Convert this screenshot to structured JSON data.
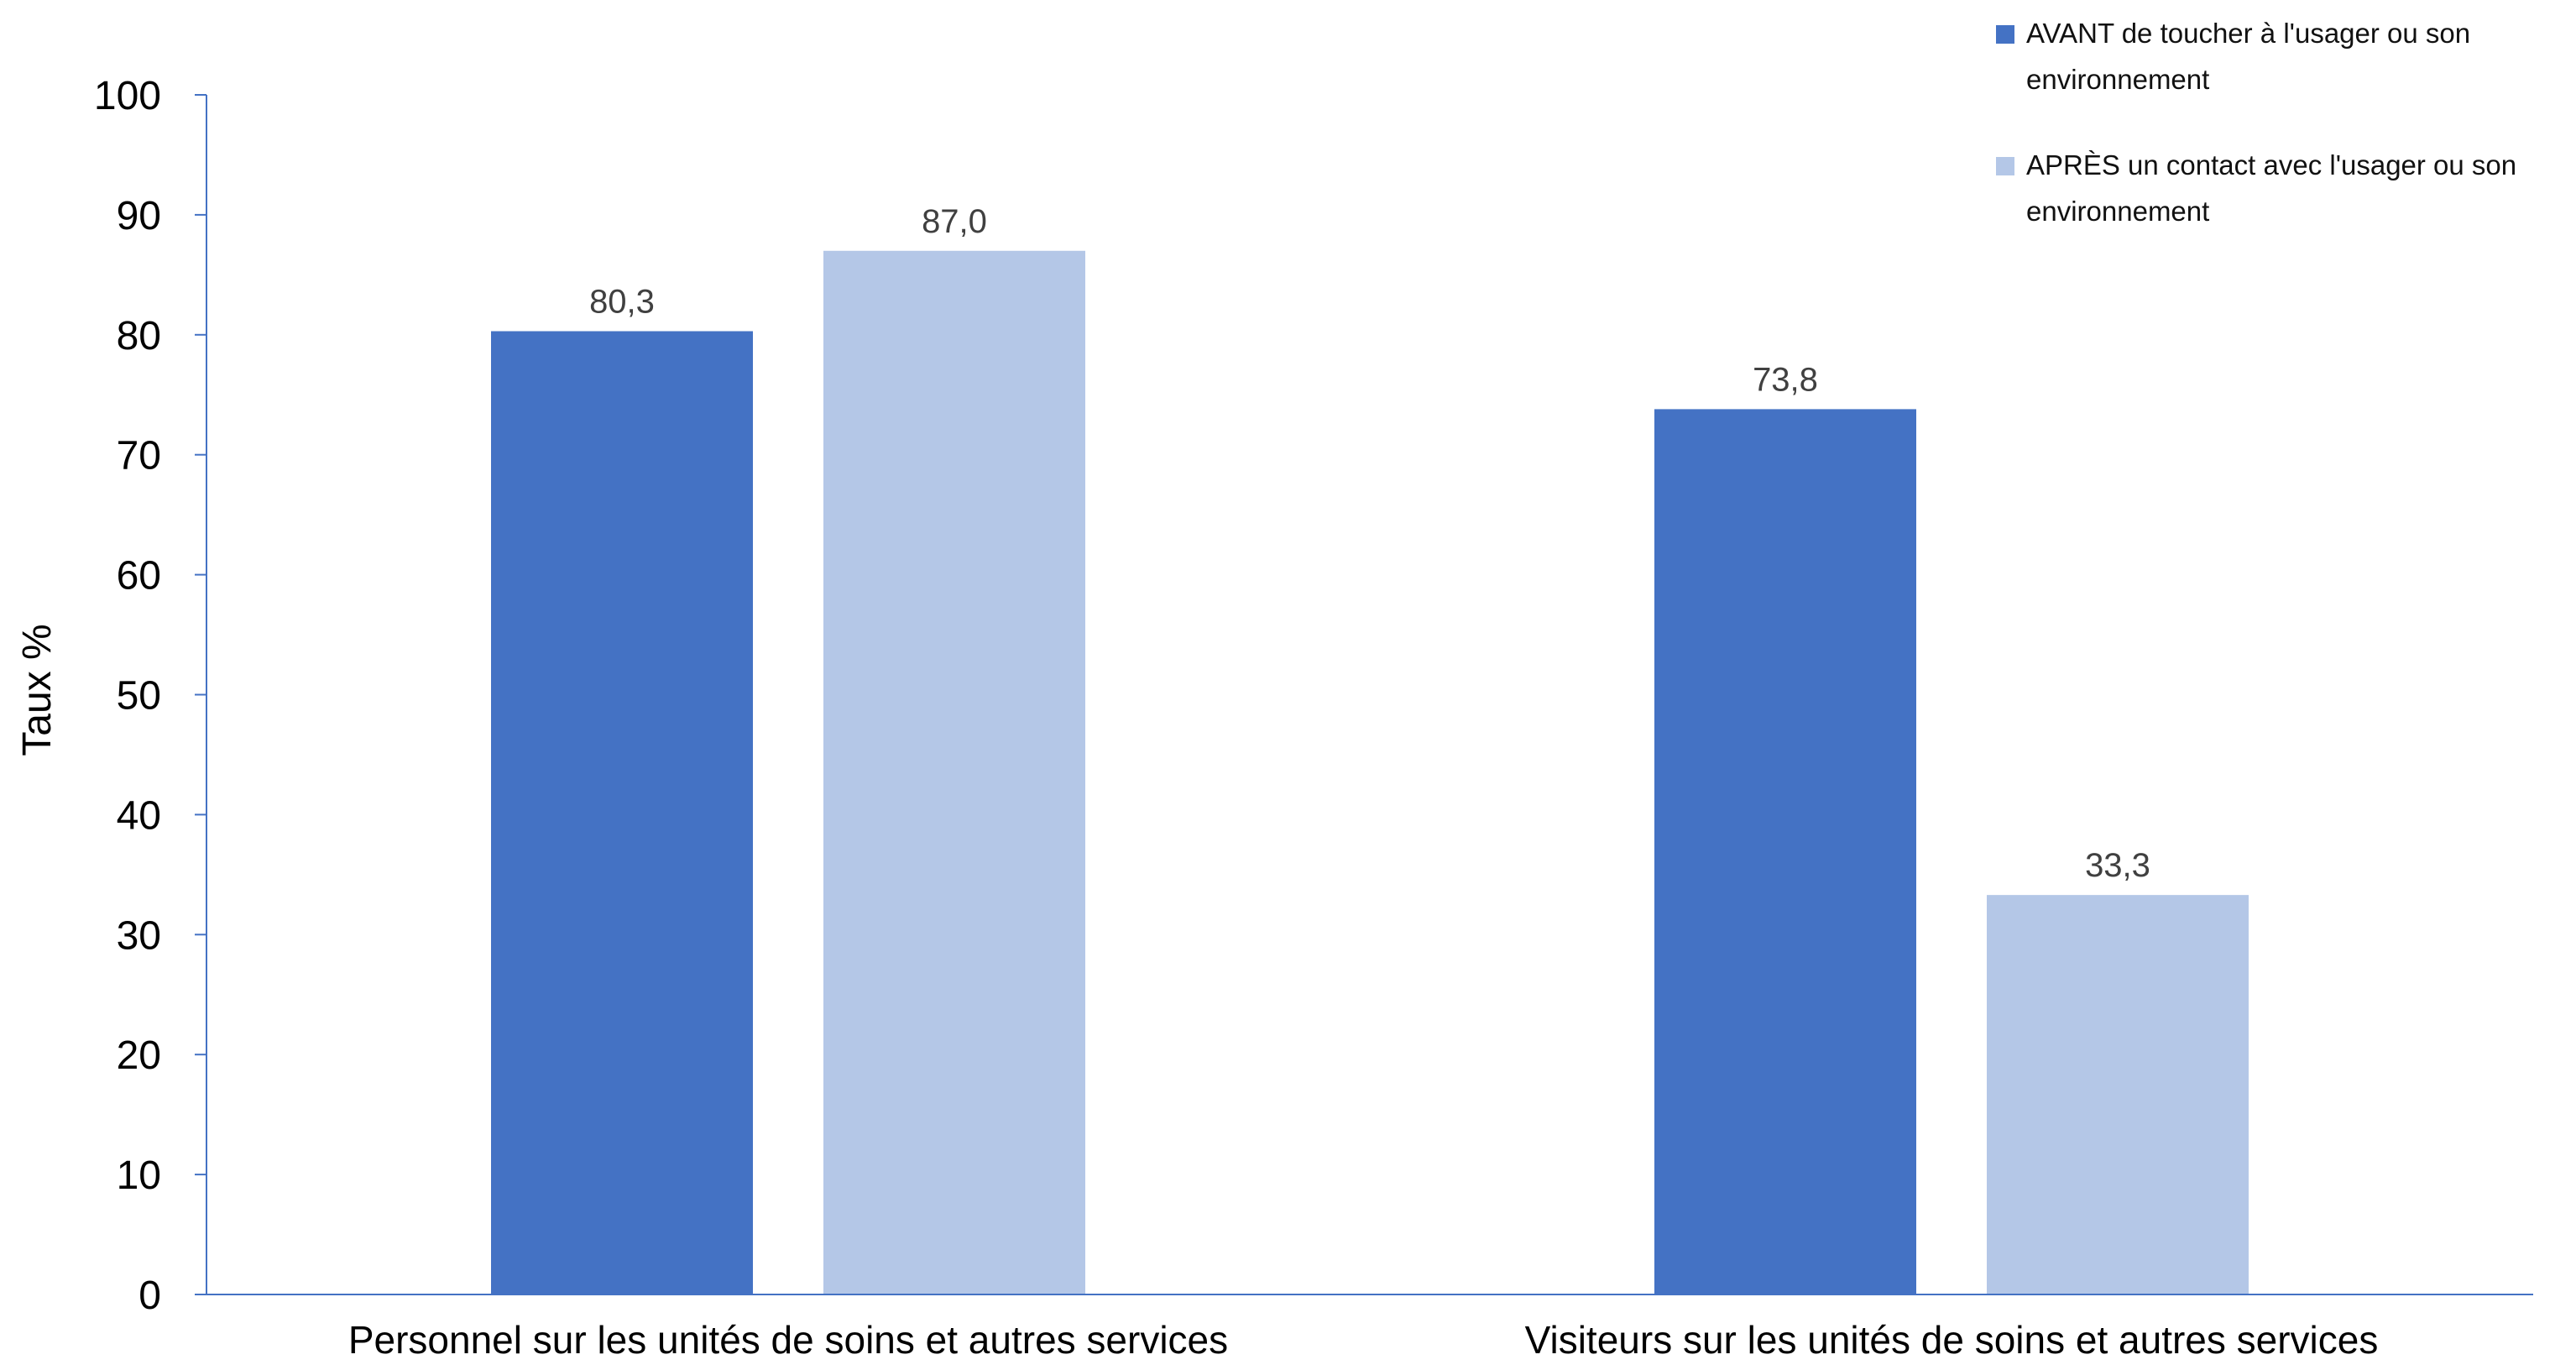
{
  "chart_data": {
    "type": "bar",
    "categories": [
      "Personnel sur les unités de soins et autres services",
      "Visiteurs sur les unités de soins et autres services"
    ],
    "series": [
      {
        "name": "AVANT de toucher à l'usager ou son environnement",
        "values": [
          80.3,
          73.8
        ],
        "labels": [
          "80,3",
          "73,8"
        ],
        "color": "#4472c4"
      },
      {
        "name": "APRÈS un contact avec l'usager ou son environnement",
        "values": [
          87.0,
          33.3
        ],
        "labels": [
          "87,0",
          "33,3"
        ],
        "color": "#b4c7e7"
      }
    ],
    "ylabel": "Taux %",
    "ylim": [
      0,
      100
    ],
    "yticks": [
      0,
      10,
      20,
      30,
      40,
      50,
      60,
      70,
      80,
      90,
      100
    ],
    "grid": false,
    "legend_position": "top-right",
    "axis_color": "#4472c4"
  }
}
